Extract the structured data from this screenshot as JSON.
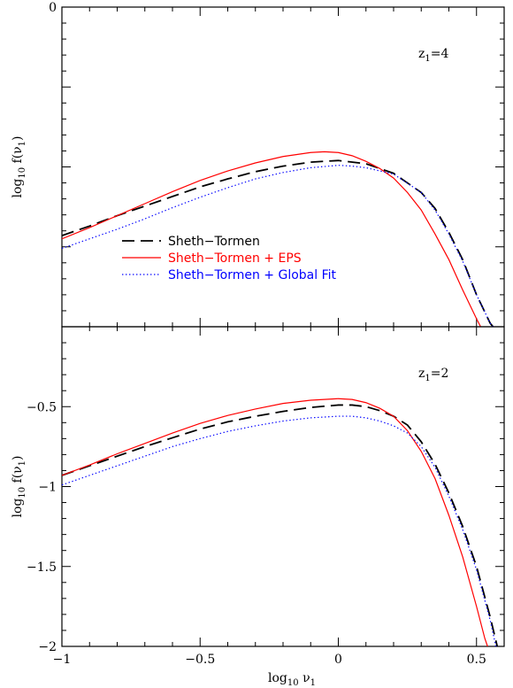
{
  "chart_data": [
    {
      "type": "line",
      "panel": "top",
      "annotation": {
        "base": "z",
        "sub": "1",
        "rest": "=4"
      },
      "ylabel": {
        "pre": "log",
        "sub": "10",
        "post": " f(ν",
        "sub2": "1",
        "end": ")"
      },
      "xlim": [
        -1,
        0.6
      ],
      "ylim": [
        -2,
        0
      ],
      "yticks_labeled": [
        {
          "value": 0,
          "label": "0"
        }
      ],
      "grid": false,
      "series": [
        {
          "name": "Sheth−Tormen",
          "color": "#000000",
          "dash": "dashed",
          "points": [
            [
              -1,
              -1.43
            ],
            [
              -0.9,
              -1.37
            ],
            [
              -0.8,
              -1.305
            ],
            [
              -0.7,
              -1.245
            ],
            [
              -0.6,
              -1.185
            ],
            [
              -0.5,
              -1.125
            ],
            [
              -0.4,
              -1.075
            ],
            [
              -0.3,
              -1.03
            ],
            [
              -0.2,
              -0.995
            ],
            [
              -0.1,
              -0.97
            ],
            [
              0,
              -0.96
            ],
            [
              0.1,
              -0.98
            ],
            [
              0.2,
              -1.04
            ],
            [
              0.3,
              -1.16
            ],
            [
              0.35,
              -1.26
            ],
            [
              0.4,
              -1.41
            ],
            [
              0.45,
              -1.58
            ],
            [
              0.5,
              -1.8
            ],
            [
              0.55,
              -1.98
            ],
            [
              0.56,
              -2.0
            ]
          ]
        },
        {
          "name": "Sheth−Tormen + EPS",
          "color": "#ff0000",
          "dash": "solid",
          "points": [
            [
              -1,
              -1.45
            ],
            [
              -0.9,
              -1.38
            ],
            [
              -0.8,
              -1.305
            ],
            [
              -0.7,
              -1.23
            ],
            [
              -0.6,
              -1.155
            ],
            [
              -0.5,
              -1.085
            ],
            [
              -0.4,
              -1.025
            ],
            [
              -0.3,
              -0.975
            ],
            [
              -0.2,
              -0.935
            ],
            [
              -0.1,
              -0.91
            ],
            [
              -0.05,
              -0.905
            ],
            [
              0,
              -0.91
            ],
            [
              0.05,
              -0.93
            ],
            [
              0.1,
              -0.965
            ],
            [
              0.15,
              -1.01
            ],
            [
              0.2,
              -1.07
            ],
            [
              0.25,
              -1.16
            ],
            [
              0.3,
              -1.27
            ],
            [
              0.35,
              -1.42
            ],
            [
              0.4,
              -1.58
            ],
            [
              0.45,
              -1.77
            ],
            [
              0.5,
              -1.95
            ],
            [
              0.515,
              -2.0
            ]
          ]
        },
        {
          "name": "Sheth−Tormen + Global Fit",
          "color": "#0000ff",
          "dash": "dotted",
          "points": [
            [
              -1,
              -1.51
            ],
            [
              -0.9,
              -1.45
            ],
            [
              -0.8,
              -1.39
            ],
            [
              -0.7,
              -1.325
            ],
            [
              -0.6,
              -1.255
            ],
            [
              -0.5,
              -1.19
            ],
            [
              -0.4,
              -1.13
            ],
            [
              -0.3,
              -1.075
            ],
            [
              -0.2,
              -1.035
            ],
            [
              -0.1,
              -1.005
            ],
            [
              0,
              -0.99
            ],
            [
              0.05,
              -0.995
            ],
            [
              0.1,
              -1.005
            ],
            [
              0.2,
              -1.045
            ],
            [
              0.3,
              -1.16
            ],
            [
              0.35,
              -1.27
            ],
            [
              0.4,
              -1.42
            ],
            [
              0.45,
              -1.59
            ],
            [
              0.5,
              -1.8
            ],
            [
              0.55,
              -1.98
            ],
            [
              0.56,
              -2.0
            ]
          ]
        }
      ]
    },
    {
      "type": "line",
      "panel": "bottom",
      "annotation": {
        "base": "z",
        "sub": "1",
        "rest": "=2"
      },
      "ylabel": {
        "pre": "log",
        "sub": "10",
        "post": " f(ν",
        "sub2": "1",
        "end": ")"
      },
      "xlabel": {
        "pre": "log",
        "sub": "10",
        "post": " ν",
        "sub2": "1"
      },
      "xlim": [
        -1,
        0.6
      ],
      "ylim": [
        -2,
        0
      ],
      "xticks": [
        {
          "value": -1,
          "label": "−1"
        },
        {
          "value": -0.5,
          "label": "−0.5"
        },
        {
          "value": 0,
          "label": "0"
        },
        {
          "value": 0.5,
          "label": "0.5"
        }
      ],
      "yticks_labeled": [
        {
          "value": -0.5,
          "label": "−0.5"
        },
        {
          "value": -1,
          "label": "−1"
        },
        {
          "value": -1.5,
          "label": "−1.5"
        },
        {
          "value": -2,
          "label": "−2"
        }
      ],
      "grid": false,
      "series": [
        {
          "name": "Sheth−Tormen",
          "color": "#000000",
          "dash": "dashed",
          "points": [
            [
              -1,
              -0.93
            ],
            [
              -0.9,
              -0.87
            ],
            [
              -0.8,
              -0.81
            ],
            [
              -0.7,
              -0.75
            ],
            [
              -0.6,
              -0.695
            ],
            [
              -0.5,
              -0.64
            ],
            [
              -0.4,
              -0.595
            ],
            [
              -0.3,
              -0.56
            ],
            [
              -0.2,
              -0.53
            ],
            [
              -0.1,
              -0.505
            ],
            [
              0,
              -0.49
            ],
            [
              0.05,
              -0.49
            ],
            [
              0.1,
              -0.5
            ],
            [
              0.15,
              -0.525
            ],
            [
              0.2,
              -0.56
            ],
            [
              0.25,
              -0.615
            ],
            [
              0.3,
              -0.72
            ],
            [
              0.35,
              -0.86
            ],
            [
              0.4,
              -1.04
            ],
            [
              0.45,
              -1.25
            ],
            [
              0.5,
              -1.5
            ],
            [
              0.55,
              -1.82
            ],
            [
              0.575,
              -2.0
            ]
          ]
        },
        {
          "name": "Sheth−Tormen + EPS",
          "color": "#ff0000",
          "dash": "solid",
          "points": [
            [
              -1,
              -0.93
            ],
            [
              -0.9,
              -0.865
            ],
            [
              -0.8,
              -0.795
            ],
            [
              -0.7,
              -0.73
            ],
            [
              -0.6,
              -0.665
            ],
            [
              -0.5,
              -0.605
            ],
            [
              -0.4,
              -0.555
            ],
            [
              -0.3,
              -0.515
            ],
            [
              -0.2,
              -0.48
            ],
            [
              -0.1,
              -0.46
            ],
            [
              0,
              -0.45
            ],
            [
              0.05,
              -0.455
            ],
            [
              0.1,
              -0.475
            ],
            [
              0.15,
              -0.51
            ],
            [
              0.2,
              -0.56
            ],
            [
              0.25,
              -0.65
            ],
            [
              0.3,
              -0.78
            ],
            [
              0.35,
              -0.95
            ],
            [
              0.4,
              -1.18
            ],
            [
              0.45,
              -1.44
            ],
            [
              0.5,
              -1.75
            ],
            [
              0.53,
              -1.95
            ],
            [
              0.54,
              -2.0
            ]
          ]
        },
        {
          "name": "Sheth−Tormen + Global Fit",
          "color": "#0000ff",
          "dash": "dotted",
          "points": [
            [
              -1,
              -0.99
            ],
            [
              -0.9,
              -0.93
            ],
            [
              -0.8,
              -0.87
            ],
            [
              -0.7,
              -0.81
            ],
            [
              -0.6,
              -0.75
            ],
            [
              -0.5,
              -0.7
            ],
            [
              -0.4,
              -0.655
            ],
            [
              -0.3,
              -0.62
            ],
            [
              -0.2,
              -0.59
            ],
            [
              -0.1,
              -0.57
            ],
            [
              0,
              -0.56
            ],
            [
              0.05,
              -0.56
            ],
            [
              0.1,
              -0.57
            ],
            [
              0.15,
              -0.59
            ],
            [
              0.2,
              -0.62
            ],
            [
              0.25,
              -0.665
            ],
            [
              0.3,
              -0.75
            ],
            [
              0.35,
              -0.88
            ],
            [
              0.4,
              -1.06
            ],
            [
              0.45,
              -1.27
            ],
            [
              0.5,
              -1.52
            ],
            [
              0.55,
              -1.84
            ],
            [
              0.57,
              -2.0
            ]
          ]
        }
      ]
    }
  ],
  "legend": {
    "placement": "inside-left-lower (top panel)",
    "entries": [
      {
        "label": "Sheth−Tormen",
        "color": "#000000",
        "dash": "dashed"
      },
      {
        "label": "Sheth−Tormen + EPS",
        "color": "#ff0000",
        "dash": "solid"
      },
      {
        "label": "Sheth−Tormen + Global Fit",
        "color": "#0000ff",
        "dash": "dotted"
      }
    ]
  }
}
